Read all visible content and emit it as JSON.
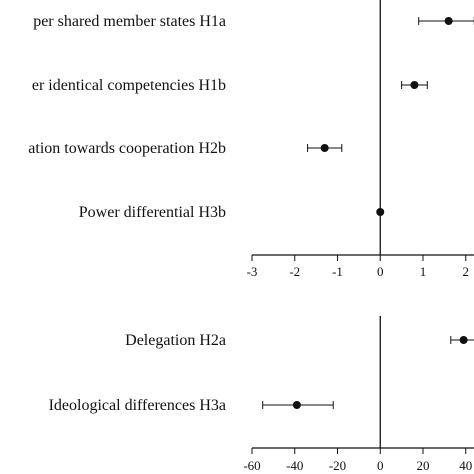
{
  "chart_data": [
    {
      "type": "scatter",
      "title": "",
      "xlabel": "",
      "ylabel": "",
      "xlim": [
        -3,
        2.2
      ],
      "xticks": [
        "-3",
        "-2",
        "-1",
        "0",
        "1",
        "2"
      ],
      "grid": false,
      "zero_line": true,
      "series": [
        {
          "points": [
            {
              "label": "per shared member states H1a",
              "estimate": 1.6,
              "ci_low": 0.9,
              "ci_high": 2.2
            },
            {
              "label": "er identical competencies H1b",
              "estimate": 0.8,
              "ci_low": 0.5,
              "ci_high": 1.1
            },
            {
              "label": "ation towards cooperation H2b",
              "estimate": -1.3,
              "ci_low": -1.7,
              "ci_high": -0.9
            },
            {
              "label": "Power differential H3b",
              "estimate": 0.0,
              "ci_low": 0.0,
              "ci_high": 0.0
            }
          ]
        }
      ]
    },
    {
      "type": "scatter",
      "title": "",
      "xlabel": "",
      "ylabel": "",
      "xlim": [
        -60,
        45
      ],
      "xticks": [
        "-60",
        "-40",
        "-20",
        "0",
        "20",
        "40"
      ],
      "grid": false,
      "zero_line": true,
      "series": [
        {
          "points": [
            {
              "label": "Delegation H2a",
              "estimate": 39,
              "ci_low": 33,
              "ci_high": 45
            },
            {
              "label": "Ideological differences H3a",
              "estimate": -39,
              "ci_low": -55,
              "ci_high": -22
            }
          ]
        }
      ]
    }
  ]
}
